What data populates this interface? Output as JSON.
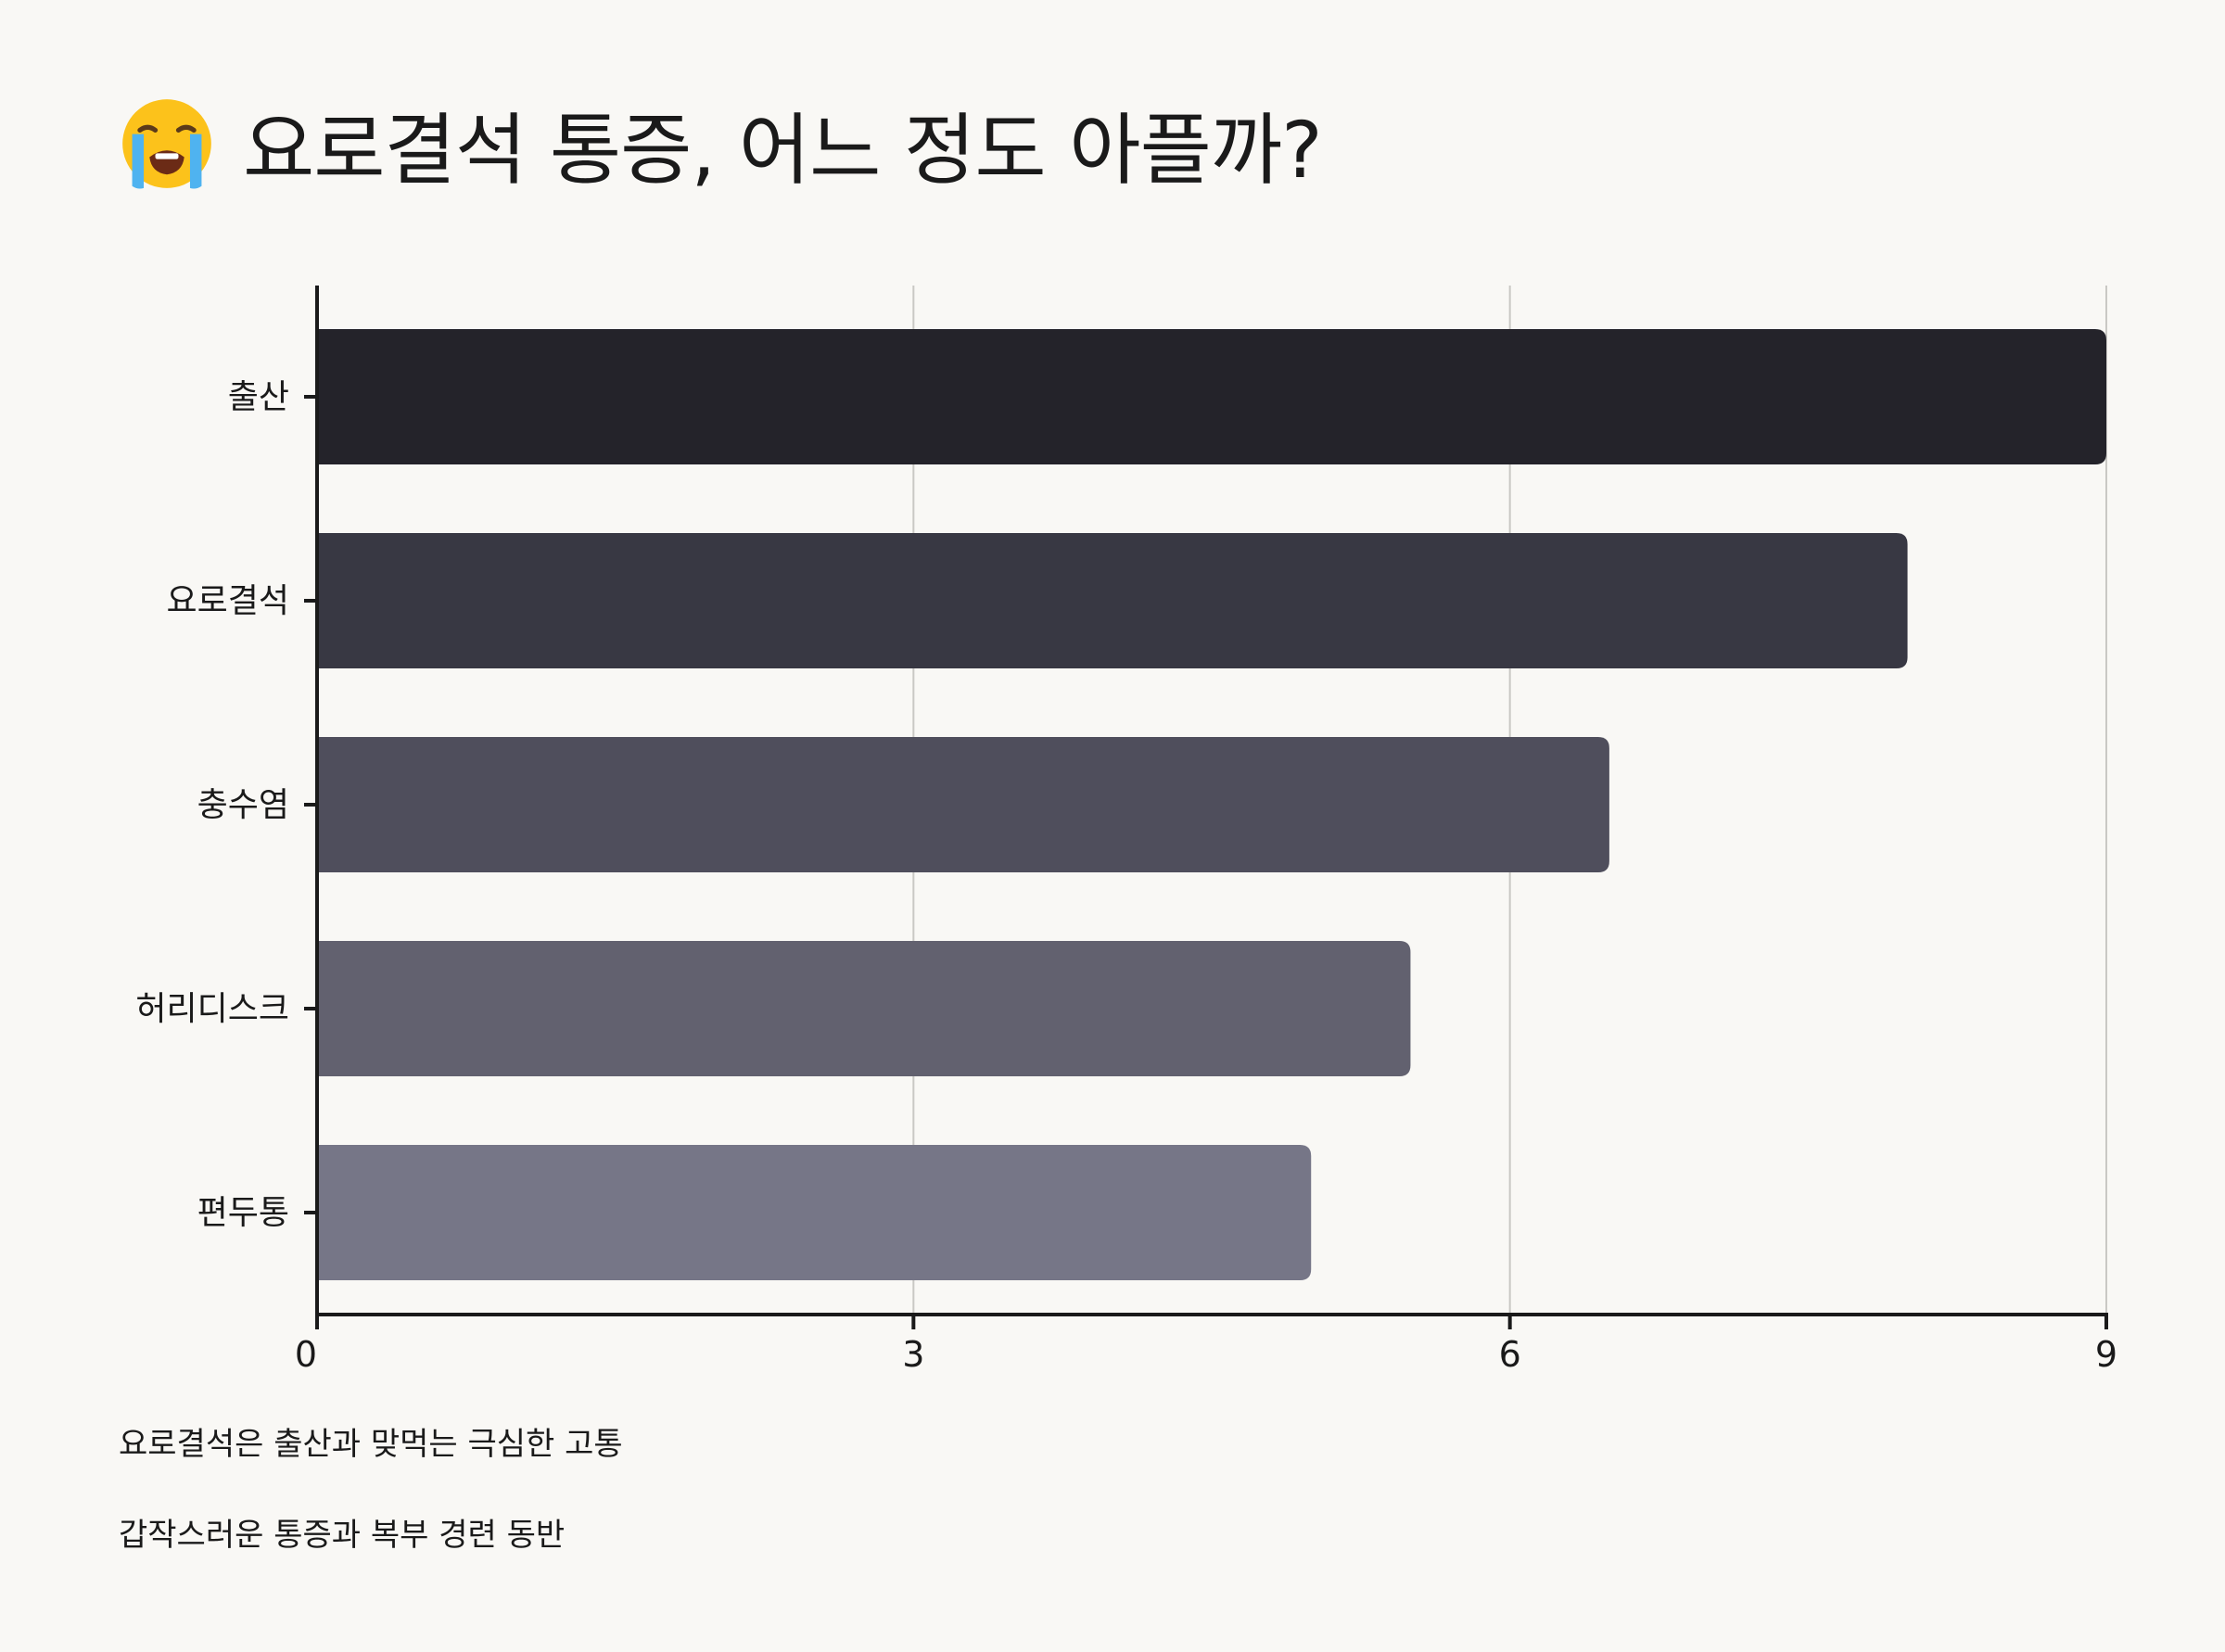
{
  "title": {
    "emoji": "crying-face-icon",
    "text": "요로결석 통증, 어느 정도 아플까?"
  },
  "chart_data": {
    "type": "bar",
    "orientation": "horizontal",
    "categories": [
      "출산",
      "요로결석",
      "충수염",
      "허리디스크",
      "편두통"
    ],
    "values": [
      9,
      8,
      6.5,
      5.5,
      5
    ],
    "colors": [
      "#24232a",
      "#383843",
      "#4f4e5c",
      "#62616f",
      "#767687"
    ],
    "xlim": [
      0,
      9
    ],
    "xticks": [
      "0",
      "3",
      "6",
      "9"
    ],
    "grid": true,
    "legend": false
  },
  "notes": [
    "요로결석은 출산과 맞먹는 극심한 고통",
    "갑작스러운 통증과 복부 경련 동반"
  ]
}
